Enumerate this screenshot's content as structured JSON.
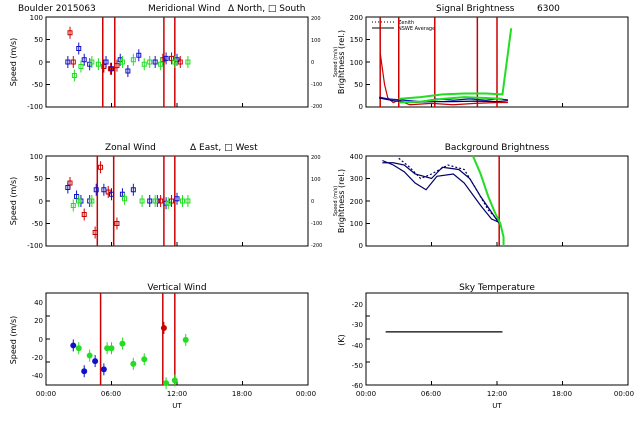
{
  "colors": {
    "red": "#cc0000",
    "blue": "#1010cc",
    "green": "#22dd22",
    "navy": "#000066",
    "black": "#000000"
  },
  "chart_data": [
    {
      "id": "meridional",
      "type": "scatter",
      "title": "Meridional Wind",
      "header_left": "Boulder   2015063",
      "legend_text": "Δ North, □ South",
      "ylabel": "Speed (m/s)",
      "ylabel_right": "Speed (m/s)",
      "ylim": [
        -100,
        100
      ],
      "yticks": [
        "100",
        "50",
        "0",
        "-50",
        "-100"
      ],
      "yticks_right": [
        "200",
        "100",
        "0",
        "-100",
        "-200"
      ],
      "xlim": [
        0,
        24
      ],
      "vlines": [
        5.2,
        6.3,
        10.8,
        11.8
      ],
      "series": [
        {
          "name": "red",
          "color": "red",
          "points": [
            [
              2.2,
              65
            ],
            [
              2.5,
              0
            ],
            [
              5.3,
              -10
            ],
            [
              5.9,
              -15
            ],
            [
              6.5,
              -8
            ],
            [
              10.7,
              5
            ],
            [
              11.5,
              8
            ],
            [
              12.3,
              0
            ]
          ]
        },
        {
          "name": "blue",
          "color": "blue",
          "points": [
            [
              2.0,
              0
            ],
            [
              3.0,
              30
            ],
            [
              3.5,
              5
            ],
            [
              4.0,
              -5
            ],
            [
              5.5,
              0
            ],
            [
              6.0,
              -15
            ],
            [
              6.8,
              5
            ],
            [
              7.5,
              -20
            ],
            [
              8.5,
              15
            ],
            [
              10.0,
              0
            ],
            [
              11.0,
              8
            ],
            [
              12.0,
              5
            ]
          ]
        },
        {
          "name": "green",
          "color": "green",
          "points": [
            [
              2.6,
              -30
            ],
            [
              3.2,
              -10
            ],
            [
              4.2,
              0
            ],
            [
              4.8,
              -5
            ],
            [
              7.0,
              0
            ],
            [
              8.0,
              5
            ],
            [
              9.0,
              -5
            ],
            [
              9.5,
              0
            ],
            [
              10.5,
              -5
            ],
            [
              11.8,
              0
            ],
            [
              13.0,
              0
            ]
          ]
        }
      ]
    },
    {
      "id": "zonal",
      "type": "scatter",
      "title": "Zonal Wind",
      "legend_text": "Δ East, □ West",
      "ylabel": "Speed (m/s)",
      "ylabel_right": "Speed (m/s)",
      "ylim": [
        -100,
        100
      ],
      "yticks": [
        "100",
        "50",
        "0",
        "-50",
        "-100"
      ],
      "yticks_right": [
        "200",
        "100",
        "0",
        "-100",
        "-200"
      ],
      "xlim": [
        0,
        24
      ],
      "vlines": [
        4.7,
        6.2,
        10.8,
        11.8
      ],
      "series": [
        {
          "name": "red",
          "color": "red",
          "points": [
            [
              2.2,
              40
            ],
            [
              3.5,
              -30
            ],
            [
              4.5,
              -70
            ],
            [
              5.0,
              75
            ],
            [
              5.7,
              20
            ],
            [
              6.5,
              -50
            ],
            [
              10.5,
              0
            ],
            [
              11.5,
              0
            ]
          ]
        },
        {
          "name": "blue",
          "color": "blue",
          "points": [
            [
              2.0,
              30
            ],
            [
              2.8,
              10
            ],
            [
              3.2,
              0
            ],
            [
              4.0,
              0
            ],
            [
              4.6,
              25
            ],
            [
              5.3,
              25
            ],
            [
              6.0,
              15
            ],
            [
              7.0,
              15
            ],
            [
              8.0,
              25
            ],
            [
              9.5,
              0
            ],
            [
              10.2,
              0
            ],
            [
              11.0,
              -5
            ],
            [
              12.0,
              5
            ]
          ]
        },
        {
          "name": "green",
          "color": "green",
          "points": [
            [
              2.5,
              -10
            ],
            [
              3.0,
              0
            ],
            [
              4.2,
              0
            ],
            [
              7.2,
              5
            ],
            [
              8.8,
              0
            ],
            [
              10.0,
              0
            ],
            [
              11.2,
              -5
            ],
            [
              12.5,
              0
            ],
            [
              13.0,
              0
            ]
          ]
        }
      ]
    },
    {
      "id": "vertical",
      "type": "scatter",
      "title": "Vertical Wind",
      "ylabel": "Speed (m/s)",
      "xlabel": "UT",
      "ylim": [
        -50,
        50
      ],
      "yticks": [
        "40",
        "20",
        "0",
        "-20",
        "-40"
      ],
      "xticks": [
        "00:00",
        "06:00",
        "12:00",
        "18:00",
        "00:00"
      ],
      "xlim": [
        0,
        24
      ],
      "vlines": [
        5.0,
        10.7,
        11.8
      ],
      "series": [
        {
          "name": "blue",
          "color": "blue",
          "points": [
            [
              2.5,
              -7
            ],
            [
              3.5,
              -35
            ],
            [
              4.5,
              -24
            ],
            [
              5.3,
              -33
            ]
          ]
        },
        {
          "name": "green",
          "color": "green",
          "points": [
            [
              3.0,
              -10
            ],
            [
              4.0,
              -18
            ],
            [
              5.6,
              -10
            ],
            [
              6.0,
              -10
            ],
            [
              7.0,
              -5
            ],
            [
              8.0,
              -27
            ],
            [
              9.0,
              -22
            ],
            [
              11.0,
              -48
            ],
            [
              11.8,
              -45
            ],
            [
              12.8,
              -1
            ]
          ]
        },
        {
          "name": "red",
          "color": "red",
          "points": [
            [
              10.8,
              12
            ]
          ]
        }
      ]
    },
    {
      "id": "signal",
      "type": "line",
      "title": "Signal Brightness",
      "title_extra": "6300",
      "ylabel": "Brightness (rel.)",
      "ylim": [
        0,
        200
      ],
      "yticks": [
        "200",
        "150",
        "100",
        "50",
        "0"
      ],
      "xlim": [
        0,
        24
      ],
      "legend": [
        "Zenith",
        "NSWE Average"
      ],
      "vlines": [
        1.3,
        3.0,
        6.3,
        10.2,
        12.0
      ],
      "series": [
        {
          "name": "red-peak",
          "color": "red",
          "points": [
            [
              1.3,
              120
            ],
            [
              1.7,
              50
            ],
            [
              2.0,
              20
            ],
            [
              2.5,
              10
            ],
            [
              3.0,
              15
            ],
            [
              4.0,
              5
            ],
            [
              6.0,
              8
            ],
            [
              8.0,
              5
            ],
            [
              10.0,
              8
            ],
            [
              12.0,
              10
            ],
            [
              13.0,
              10
            ]
          ]
        },
        {
          "name": "blue-zenith",
          "color": "blue",
          "points": [
            [
              1.2,
              22
            ],
            [
              2.0,
              18
            ],
            [
              3.5,
              15
            ],
            [
              5.0,
              12
            ],
            [
              6.5,
              18
            ],
            [
              8.0,
              15
            ],
            [
              9.5,
              18
            ],
            [
              11.0,
              15
            ],
            [
              12.0,
              18
            ],
            [
              13.0,
              16
            ]
          ]
        },
        {
          "name": "navy-avg",
          "color": "navy",
          "points": [
            [
              1.2,
              20
            ],
            [
              2.5,
              14
            ],
            [
              4.0,
              10
            ],
            [
              6.0,
              12
            ],
            [
              8.0,
              12
            ],
            [
              10.0,
              13
            ],
            [
              12.0,
              12
            ],
            [
              13.0,
              14
            ]
          ]
        },
        {
          "name": "green-1",
          "color": "green",
          "points": [
            [
              3.0,
              18
            ],
            [
              5.0,
              22
            ],
            [
              7.0,
              28
            ],
            [
              9.0,
              30
            ],
            [
              11.0,
              30
            ],
            [
              12.5,
              28
            ],
            [
              13.3,
              175
            ]
          ]
        },
        {
          "name": "green-2",
          "color": "green",
          "points": [
            [
              3.0,
              10
            ],
            [
              5.0,
              12
            ],
            [
              7.0,
              18
            ],
            [
              9.0,
              22
            ],
            [
              11.0,
              20
            ],
            [
              12.5,
              18
            ]
          ]
        }
      ]
    },
    {
      "id": "background",
      "type": "line",
      "title": "Background Brightness",
      "ylabel": "Brightness (rel.)",
      "ylim": [
        0,
        400
      ],
      "yticks": [
        "400",
        "300",
        "200",
        "100",
        "0"
      ],
      "xlim": [
        0,
        24
      ],
      "vlines": [
        12.2
      ],
      "series": [
        {
          "name": "navy-1",
          "color": "navy",
          "points": [
            [
              1.5,
              370
            ],
            [
              2.5,
              370
            ],
            [
              3.5,
              360
            ],
            [
              4.5,
              320
            ],
            [
              6.0,
              300
            ],
            [
              7.0,
              350
            ],
            [
              8.5,
              340
            ],
            [
              9.5,
              300
            ],
            [
              10.5,
              220
            ],
            [
              11.5,
              150
            ],
            [
              12.2,
              100
            ]
          ]
        },
        {
          "name": "navy-2",
          "color": "navy",
          "points": [
            [
              1.5,
              380
            ],
            [
              2.5,
              360
            ],
            [
              3.5,
              330
            ],
            [
              4.5,
              280
            ],
            [
              5.5,
              250
            ],
            [
              6.5,
              310
            ],
            [
              8.0,
              320
            ],
            [
              9.0,
              280
            ],
            [
              10.5,
              180
            ],
            [
              11.5,
              120
            ],
            [
              12.2,
              105
            ]
          ]
        },
        {
          "name": "navy-3",
          "color": "navy",
          "points": [
            [
              3.0,
              390
            ],
            [
              4.0,
              350
            ],
            [
              5.0,
              300
            ],
            [
              6.0,
              320
            ],
            [
              7.5,
              360
            ],
            [
              9.0,
              340
            ],
            [
              10.0,
              260
            ],
            [
              11.2,
              160
            ],
            [
              12.2,
              110
            ]
          ]
        },
        {
          "name": "green",
          "color": "green",
          "points": [
            [
              9.8,
              400
            ],
            [
              10.5,
              320
            ],
            [
              11.2,
              220
            ],
            [
              11.8,
              150
            ],
            [
              12.3,
              100
            ],
            [
              12.6,
              40
            ],
            [
              12.6,
              0
            ]
          ]
        }
      ]
    },
    {
      "id": "sky",
      "type": "line",
      "title": "Sky Temperature",
      "ylabel": "(K)",
      "xlabel": "UT",
      "ylim": [
        -60,
        -15
      ],
      "yticks": [
        "-20",
        "-30",
        "-40",
        "-50",
        "-60"
      ],
      "xticks": [
        "00:00",
        "06:00",
        "12:00",
        "18:00",
        "00:00"
      ],
      "xlim": [
        0,
        24
      ],
      "series": [
        {
          "name": "temp",
          "color": "black",
          "points": [
            [
              1.8,
              -34
            ],
            [
              12.5,
              -34
            ]
          ]
        }
      ]
    }
  ]
}
